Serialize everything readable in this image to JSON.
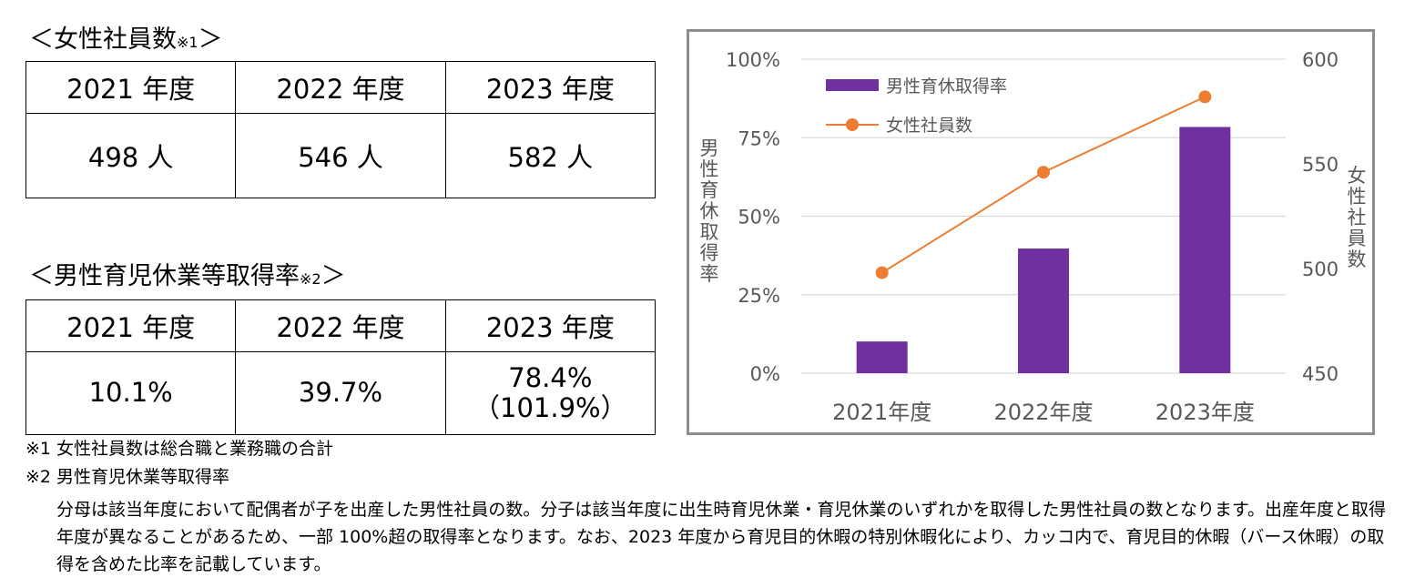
{
  "female_section": {
    "title": "＜女性社員数",
    "note": "※1",
    "close": "＞",
    "headers": [
      "2021 年度",
      "2022 年度",
      "2023 年度"
    ],
    "values": [
      "498 人",
      "546 人",
      "582 人"
    ]
  },
  "paternity_section": {
    "title": "＜男性育児休業等取得率",
    "note": "※2",
    "close": "＞",
    "headers": [
      "2021 年度",
      "2022 年度",
      "2023 年度"
    ],
    "values": [
      "10.1%",
      "39.7%",
      "78.4%"
    ],
    "value_2023_sub": "（101.9%）"
  },
  "footnotes": {
    "note1": "※1 女性社員数は総合職と業務職の合計",
    "note2": "※2 男性育児休業等取得率",
    "description": "分母は該当年度において配偶者が子を出産した男性社員の数。分子は該当年度に出生時育児休業・育児休業のいずれかを取得した男性社員の数となります。出産年度と取得年度が異なることがあるため、一部 100%超の取得率となります。なお、2023 年度から育児目的休暇の特別休暇化により、カッコ内で、育児目的休暇（バース休暇）の取得を含めた比率を記載しています。"
  },
  "chart_data": {
    "type": "bar+line",
    "categories": [
      "2021年度",
      "2022年度",
      "2023年度"
    ],
    "series": [
      {
        "name": "男性育休取得率",
        "type": "bar",
        "axis": "left",
        "values": [
          10.1,
          39.7,
          78.4
        ],
        "color": "#7030a0"
      },
      {
        "name": "女性社員数",
        "type": "line",
        "axis": "right",
        "values": [
          498,
          546,
          582
        ],
        "color": "#ed7d31"
      }
    ],
    "left_axis": {
      "label": "男性育休取得率",
      "ticks": [
        "0%",
        "25%",
        "50%",
        "75%",
        "100%"
      ],
      "range": [
        0,
        100
      ]
    },
    "right_axis": {
      "label": "女性社員数",
      "ticks": [
        "450",
        "500",
        "550",
        "600"
      ],
      "range": [
        450,
        600
      ]
    },
    "legend_position": "top-left",
    "grid": true
  }
}
